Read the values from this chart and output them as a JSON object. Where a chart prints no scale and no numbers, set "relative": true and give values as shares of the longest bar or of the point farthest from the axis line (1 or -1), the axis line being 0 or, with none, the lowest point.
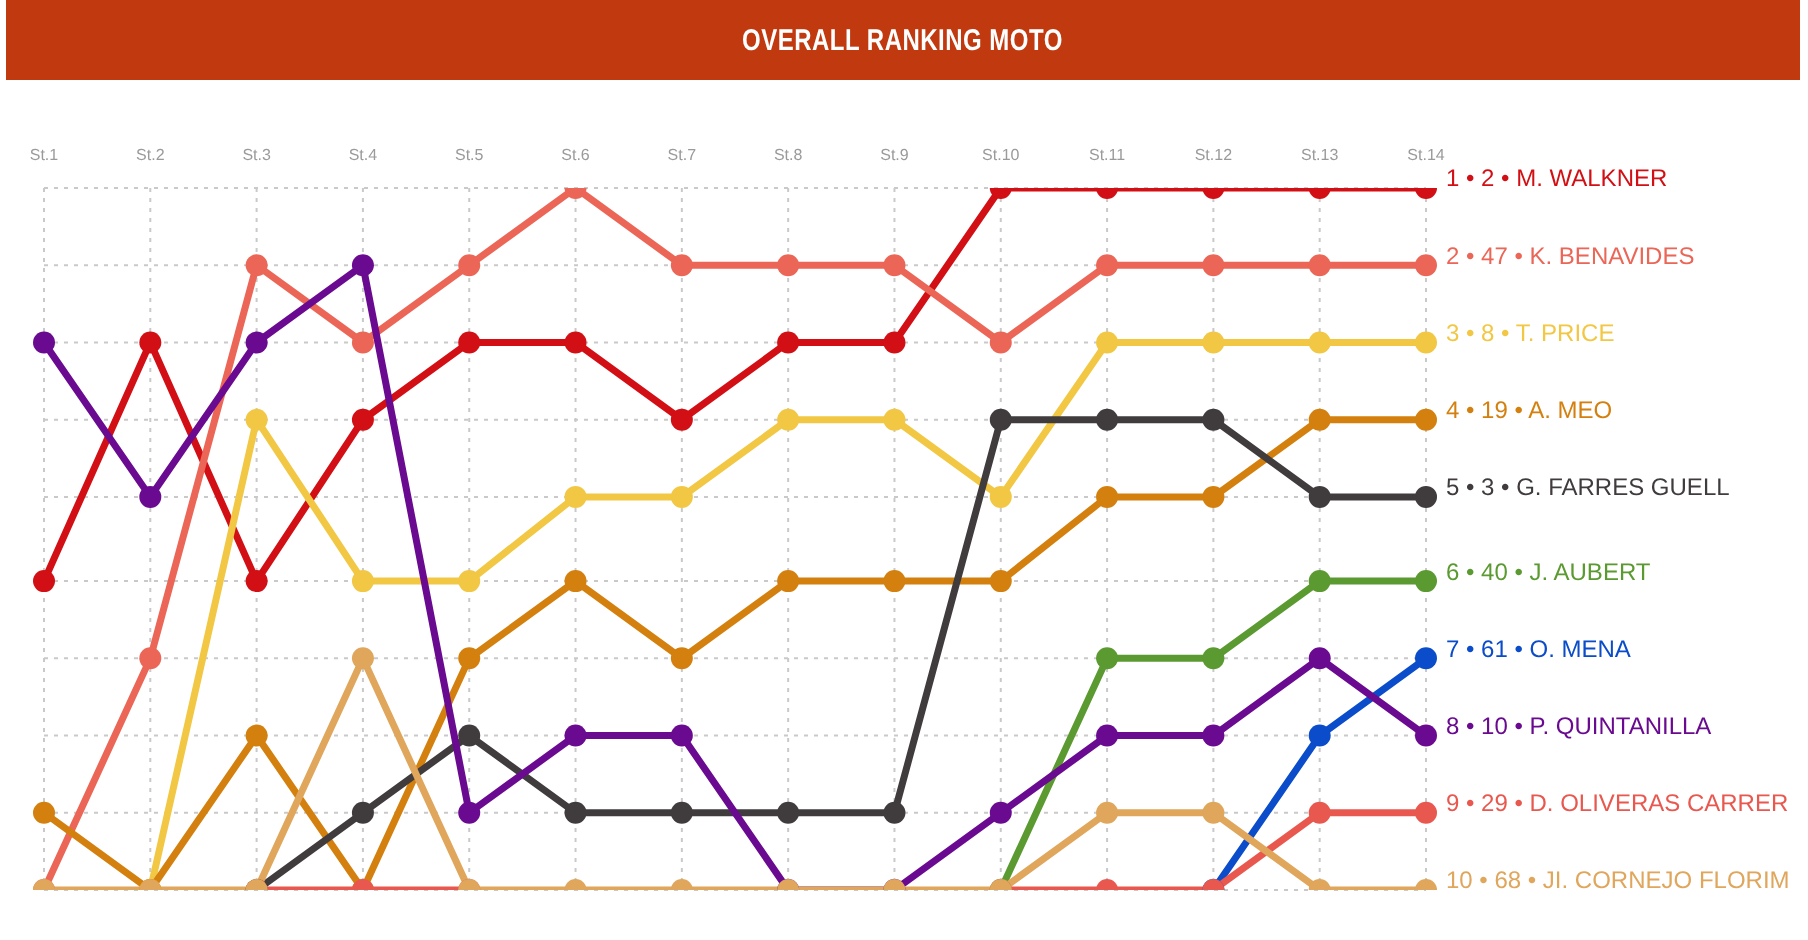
{
  "chart_data": {
    "type": "line",
    "title": "OVERALL RANKING MOTO",
    "relative": true,
    "categories": [
      "St.1",
      "St.2",
      "St.3",
      "St.4",
      "St.5",
      "St.6",
      "St.7",
      "St.8",
      "St.9",
      "St.10",
      "St.11",
      "St.12",
      "St.13",
      "St.14"
    ],
    "series": [
      {
        "name": "1 • 2 • M. WALKNER",
        "color": "#d20f14",
        "values": [
          0.44,
          0.78,
          0.44,
          0.67,
          0.78,
          0.78,
          0.67,
          0.78,
          0.78,
          1,
          1,
          1,
          1,
          1
        ]
      },
      {
        "name": "2 • 47 • K. BENAVIDES",
        "color": "#eb6656",
        "values": [
          0,
          0.33,
          0.89,
          0.78,
          0.89,
          1,
          0.89,
          0.89,
          0.89,
          0.78,
          0.89,
          0.89,
          0.89,
          0.89
        ]
      },
      {
        "name": "3 • 8 • T. PRICE",
        "color": "#f2c744",
        "values": [
          null,
          0,
          0.67,
          0.44,
          0.44,
          0.56,
          0.56,
          0.67,
          0.67,
          0.56,
          0.78,
          0.78,
          0.78,
          0.78
        ]
      },
      {
        "name": "4 • 19 • A. MEO",
        "color": "#d4800f",
        "values": [
          0.11,
          0,
          0.22,
          0,
          0.33,
          0.44,
          0.33,
          0.44,
          0.44,
          0.44,
          0.56,
          0.56,
          0.67,
          0.67
        ]
      },
      {
        "name": "5 • 3 • G. FARRES GUELL",
        "color": "#403c3e",
        "values": [
          null,
          null,
          0,
          0.11,
          0.22,
          0.11,
          0.11,
          0.11,
          0.11,
          0.67,
          0.67,
          0.67,
          0.56,
          0.56
        ]
      },
      {
        "name": "6 • 40 • J. AUBERT",
        "color": "#5b9a31",
        "values": [
          null,
          null,
          null,
          null,
          null,
          null,
          null,
          null,
          null,
          0,
          0.33,
          0.33,
          0.44,
          0.44
        ]
      },
      {
        "name": "7 • 61 • O. MENA",
        "color": "#0a4cc9",
        "values": [
          null,
          null,
          null,
          null,
          null,
          null,
          null,
          null,
          null,
          null,
          null,
          0,
          0.22,
          0.33
        ]
      },
      {
        "name": "8 • 10 • P. QUINTANILLA",
        "color": "#6a0a90",
        "values": [
          0.78,
          0.56,
          0.78,
          0.89,
          0.11,
          0.22,
          0.22,
          0,
          0,
          0.11,
          0.22,
          0.22,
          0.33,
          0.22
        ]
      },
      {
        "name": "9 • 29 • D. OLIVERAS CARRER",
        "color": "#e9584f",
        "values": [
          null,
          null,
          0,
          0,
          0,
          null,
          null,
          null,
          null,
          0,
          0,
          0,
          0.11,
          0.11
        ]
      },
      {
        "name": "10 • 68 • JI. CORNEJO FLORIM",
        "color": "#dfa65c",
        "values": [
          0,
          0,
          0,
          0.33,
          0,
          0,
          0,
          0,
          0,
          0,
          0.11,
          0.11,
          0,
          0
        ]
      }
    ],
    "grid": true,
    "marker": "circle"
  }
}
